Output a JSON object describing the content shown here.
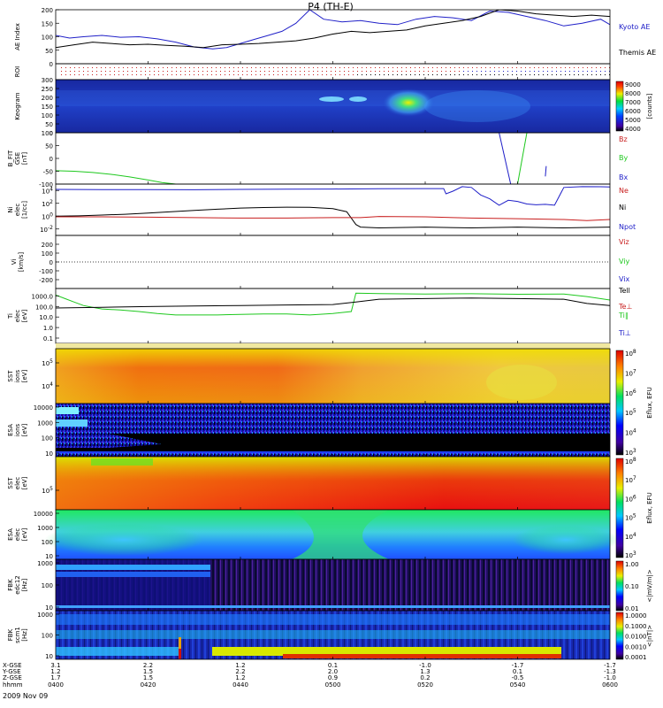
{
  "title": "P4 (TH-E)",
  "colors": {
    "kyoto": "#2020c8",
    "themis": "#000000",
    "red": "#c81e1e",
    "green": "#1ec81e",
    "blue": "#1e1ec8",
    "black": "#000000"
  },
  "chart_data": {
    "type": "line",
    "time_axis": {
      "rows": [
        "X-GSE",
        "Y-GSE",
        "Z-GSE",
        "hhmm",
        "2009 Nov 09"
      ],
      "ticks": [
        {
          "X": "3.1",
          "Y": "1.2",
          "Z": "1.7",
          "hhmm": "0400"
        },
        {
          "X": "2.2",
          "Y": "1.5",
          "Z": "1.5",
          "hhmm": "0420"
        },
        {
          "X": "1.2",
          "Y": "2.2",
          "Z": "1.2",
          "hhmm": "0440"
        },
        {
          "X": "0.1",
          "Y": "2.0",
          "Z": "0.9",
          "hhmm": "0500"
        },
        {
          "X": "-1.0",
          "Y": "1.3",
          "Z": "0.2",
          "hhmm": "0520"
        },
        {
          "X": "-1.7",
          "Y": "0.1",
          "Z": "-0.5",
          "hhmm": "0540"
        },
        {
          "X": "-1.7",
          "Y": "-1.3",
          "Z": "-1.0",
          "hhmm": "0600"
        }
      ]
    },
    "panels": [
      {
        "id": "ae",
        "type": "line",
        "ylabel": [
          "AE Index"
        ],
        "ylim": [
          0,
          200
        ],
        "yticks": [
          "0",
          "50",
          "100",
          "150",
          "200"
        ],
        "legend": [
          {
            "label": "Kyoto AE",
            "color": "#2020c8"
          },
          {
            "label": "Themis AE",
            "color": "#000000"
          }
        ],
        "series": [
          {
            "name": "Kyoto AE",
            "color": "#2020c8",
            "x": [
              0,
              3,
              6,
              10,
              14,
              18,
              22,
              26,
              30,
              34,
              37,
              40,
              43,
              46,
              49,
              52,
              55,
              58,
              62,
              66,
              70,
              74,
              78,
              82,
              86,
              90,
              94,
              98,
              102,
              106,
              110,
              114,
              118,
              120
            ],
            "values": [
              105,
              95,
              100,
              105,
              98,
              100,
              92,
              80,
              62,
              55,
              60,
              75,
              90,
              105,
              120,
              150,
              200,
              165,
              155,
              160,
              150,
              145,
              165,
              175,
              170,
              160,
              195,
              190,
              175,
              160,
              140,
              150,
              165,
              145
            ]
          },
          {
            "name": "Themis AE",
            "color": "#000000",
            "x": [
              0,
              4,
              8,
              12,
              16,
              20,
              24,
              28,
              32,
              36,
              40,
              44,
              48,
              52,
              56,
              60,
              64,
              68,
              72,
              76,
              80,
              84,
              88,
              92,
              96,
              100,
              104,
              108,
              112,
              116,
              120
            ],
            "values": [
              60,
              70,
              80,
              75,
              70,
              72,
              68,
              65,
              60,
              70,
              72,
              75,
              80,
              85,
              95,
              110,
              120,
              115,
              120,
              125,
              140,
              150,
              160,
              175,
              200,
              195,
              185,
              180,
              175,
              180,
              175
            ]
          }
        ]
      },
      {
        "id": "roi",
        "type": "dots",
        "ylabel": [
          "ROI"
        ]
      },
      {
        "id": "keogram",
        "type": "heatmap",
        "ylabel": [
          "Keogram"
        ],
        "ylim": [
          0,
          300
        ],
        "yticks": [
          "0",
          "50",
          "100",
          "150",
          "200",
          "250",
          "300"
        ],
        "colorbar": {
          "label": "[counts]",
          "ticks": [
            "4000",
            "5000",
            "6000",
            "7000",
            "8000",
            "9000"
          ]
        }
      },
      {
        "id": "bfit",
        "type": "line",
        "ylabel": [
          "B_FIT",
          "GSE",
          "[nT]"
        ],
        "ylim": [
          -100,
          100
        ],
        "yticks": [
          "-100",
          "-50",
          "0",
          "50",
          "100"
        ],
        "legend": [
          {
            "label": "Bz",
            "color": "#c81e1e"
          },
          {
            "label": "By",
            "color": "#1ec81e"
          },
          {
            "label": "Bx",
            "color": "#1e1ec8"
          }
        ],
        "series": [
          {
            "name": "By",
            "color": "#1ec81e",
            "x": [
              0,
              4,
              8,
              12,
              16,
              20,
              23,
              26
            ],
            "values": [
              -48,
              -50,
              -55,
              -62,
              -72,
              -84,
              -94,
              -100
            ]
          },
          {
            "name": "By",
            "color": "#1ec81e",
            "x": [
              100,
              102
            ],
            "values": [
              -100,
              100
            ]
          },
          {
            "name": "Bx",
            "color": "#1e1ec8",
            "x": [
              96,
              98.5
            ],
            "values": [
              100,
              -100
            ]
          },
          {
            "name": "Bx",
            "color": "#1e1ec8",
            "x": [
              106,
              106.2
            ],
            "values": [
              -70,
              -30
            ]
          }
        ]
      },
      {
        "id": "ni",
        "type": "line",
        "ylabel": [
          "Ni",
          "elec",
          "[1/cc]"
        ],
        "yscale": "log",
        "ylim": [
          0.001,
          100000
        ],
        "yticks": [
          "10^{-2}",
          "10^0",
          "10^2",
          "10^4"
        ],
        "legend": [
          {
            "label": "Ne",
            "color": "#c81e1e"
          },
          {
            "label": "Ni",
            "color": "#000000"
          },
          {
            "label": "Npot",
            "color": "#1e1ec8"
          }
        ],
        "series": [
          {
            "name": "Npot",
            "color": "#1e1ec8",
            "x": [
              0,
              10,
              20,
              30,
              40,
              50,
              60,
              70,
              80,
              84,
              84.5,
              86,
              88,
              90,
              92,
              94,
              96,
              98,
              100,
              102,
              104,
              106,
              108,
              110,
              114,
              118,
              120
            ],
            "values": [
              15000,
              14000,
              13500,
              13000,
              15000,
              16000,
              17000,
              19000,
              20000,
              20000,
              3000,
              8000,
              40000,
              30000,
              2000,
              500,
              50,
              300,
              200,
              80,
              60,
              70,
              50,
              30000,
              40000,
              38000,
              35000
            ]
          },
          {
            "name": "Ni",
            "color": "#000000",
            "x": [
              0,
              5,
              10,
              15,
              20,
              25,
              30,
              35,
              40,
              45,
              50,
              55,
              60,
              63,
              65,
              66,
              70,
              80,
              90,
              100,
              110,
              120
            ],
            "values": [
              1,
              1.1,
              1.5,
              2,
              3,
              5,
              8,
              12,
              18,
              22,
              25,
              24,
              15,
              5,
              0.05,
              0.02,
              0.015,
              0.02,
              0.015,
              0.02,
              0.015,
              0.02
            ]
          },
          {
            "name": "Ne",
            "color": "#c81e1e",
            "x": [
              0,
              10,
              20,
              30,
              40,
              50,
              60,
              64,
              66,
              70,
              80,
              90,
              100,
              110,
              115,
              120
            ],
            "values": [
              0.8,
              0.8,
              0.7,
              0.6,
              0.5,
              0.5,
              0.6,
              0.6,
              0.6,
              0.9,
              0.8,
              0.5,
              0.4,
              0.3,
              0.2,
              0.3
            ]
          }
        ]
      },
      {
        "id": "vi",
        "type": "line",
        "ylabel": [
          "Vi",
          "[km/s]"
        ],
        "ylim": [
          -300,
          300
        ],
        "yticks": [
          "-200",
          "-100",
          "0",
          "100",
          "200"
        ],
        "legend": [
          {
            "label": "Viz",
            "color": "#c81e1e"
          },
          {
            "label": "Viy",
            "color": "#1ec81e"
          },
          {
            "label": "Vix",
            "color": "#1e1ec8"
          }
        ],
        "series": []
      },
      {
        "id": "ti",
        "type": "line",
        "ylabel": [
          "Ti",
          "elec",
          "[eV]"
        ],
        "yscale": "log",
        "ylim": [
          0.05,
          3000
        ],
        "yticks": [
          "0.1",
          "1.0",
          "10.0",
          "100.0",
          "1000.0"
        ],
        "legend": [
          {
            "label": "Tell",
            "color": "#000000"
          },
          {
            "label": "Te⊥",
            "color": "#c81e1e"
          },
          {
            "label": "Ti∥",
            "color": "#1ec81e"
          },
          {
            "label": "Ti⊥",
            "color": "#1e1ec8"
          }
        ],
        "series": [
          {
            "name": "Ti∥",
            "color": "#1ec81e",
            "x": [
              0,
              2,
              4,
              6,
              8,
              10,
              14,
              18,
              22,
              26,
              30,
              35,
              40,
              45,
              50,
              55,
              60,
              64,
              65,
              70,
              80,
              90,
              100,
              110,
              115,
              120
            ],
            "values": [
              800,
              400,
              200,
              100,
              70,
              50,
              40,
              30,
              20,
              15,
              15,
              15,
              17,
              18,
              18,
              15,
              20,
              30,
              1200,
              1100,
              1000,
              1050,
              950,
              1000,
              600,
              300
            ]
          },
          {
            "name": "Tell",
            "color": "#000000",
            "x": [
              0,
              10,
              20,
              30,
              40,
              50,
              60,
              65,
              70,
              80,
              90,
              100,
              110,
              115,
              120
            ],
            "values": [
              60,
              70,
              80,
              90,
              100,
              110,
              120,
              200,
              350,
              400,
              450,
              400,
              350,
              150,
              100
            ]
          }
        ]
      },
      {
        "id": "sst_i",
        "type": "heatmap",
        "ylabel": [
          "SST",
          "ions",
          "[eV]"
        ],
        "yticks": [
          "10^5",
          "10^4"
        ],
        "colorbar": {
          "label": "Eflux, EFU",
          "ticks": [
            "10^3",
            "10^4",
            "10^5",
            "10^6",
            "10^7",
            "10^8"
          ]
        }
      },
      {
        "id": "esa_i",
        "type": "heatmap",
        "ylabel": [
          "ESA",
          "ions",
          "[eV]"
        ],
        "yticks": [
          "10",
          "100",
          "1000",
          "10000"
        ],
        "colorbar": {
          "label": "Eflux, EFU",
          "ticks": [
            "10^3",
            "10^4",
            "10^5",
            "10^6",
            "10^7",
            "10^8"
          ]
        }
      },
      {
        "id": "sst_e",
        "type": "heatmap",
        "ylabel": [
          "SST",
          "elec",
          "[eV]"
        ],
        "yticks": [
          "10^5"
        ],
        "colorbar": {
          "label": "Eflux, EFU",
          "ticks": [
            "10^3",
            "10^4",
            "10^5",
            "10^6",
            "10^7",
            "10^8"
          ]
        }
      },
      {
        "id": "esa_e",
        "type": "heatmap",
        "ylabel": [
          "ESA",
          "elec",
          "[eV]"
        ],
        "yticks": [
          "10",
          "100",
          "1000",
          "10000"
        ],
        "colorbar": {
          "label": "Eflux, EFU",
          "ticks": [
            "10^3",
            "10^4",
            "10^5",
            "10^6",
            "10^7",
            "10^8"
          ]
        }
      },
      {
        "id": "fbk_e",
        "type": "heatmap",
        "ylabel": [
          "FBK",
          "edc12",
          "[Hz]"
        ],
        "yticks": [
          "10",
          "100",
          "1000"
        ],
        "colorbar": {
          "label": "<|mV/m|>",
          "ticks": [
            "0.01",
            "0.10",
            "1.00"
          ]
        }
      },
      {
        "id": "fbk_b",
        "type": "heatmap",
        "ylabel": [
          "FBK",
          "scm1",
          "[Hz]"
        ],
        "yticks": [
          "10",
          "100",
          "1000"
        ],
        "colorbar": {
          "label": "<|nT|>",
          "ticks": [
            "0.0001",
            "0.0010",
            "0.0100",
            "0.1000",
            "1.0000"
          ]
        }
      }
    ]
  }
}
